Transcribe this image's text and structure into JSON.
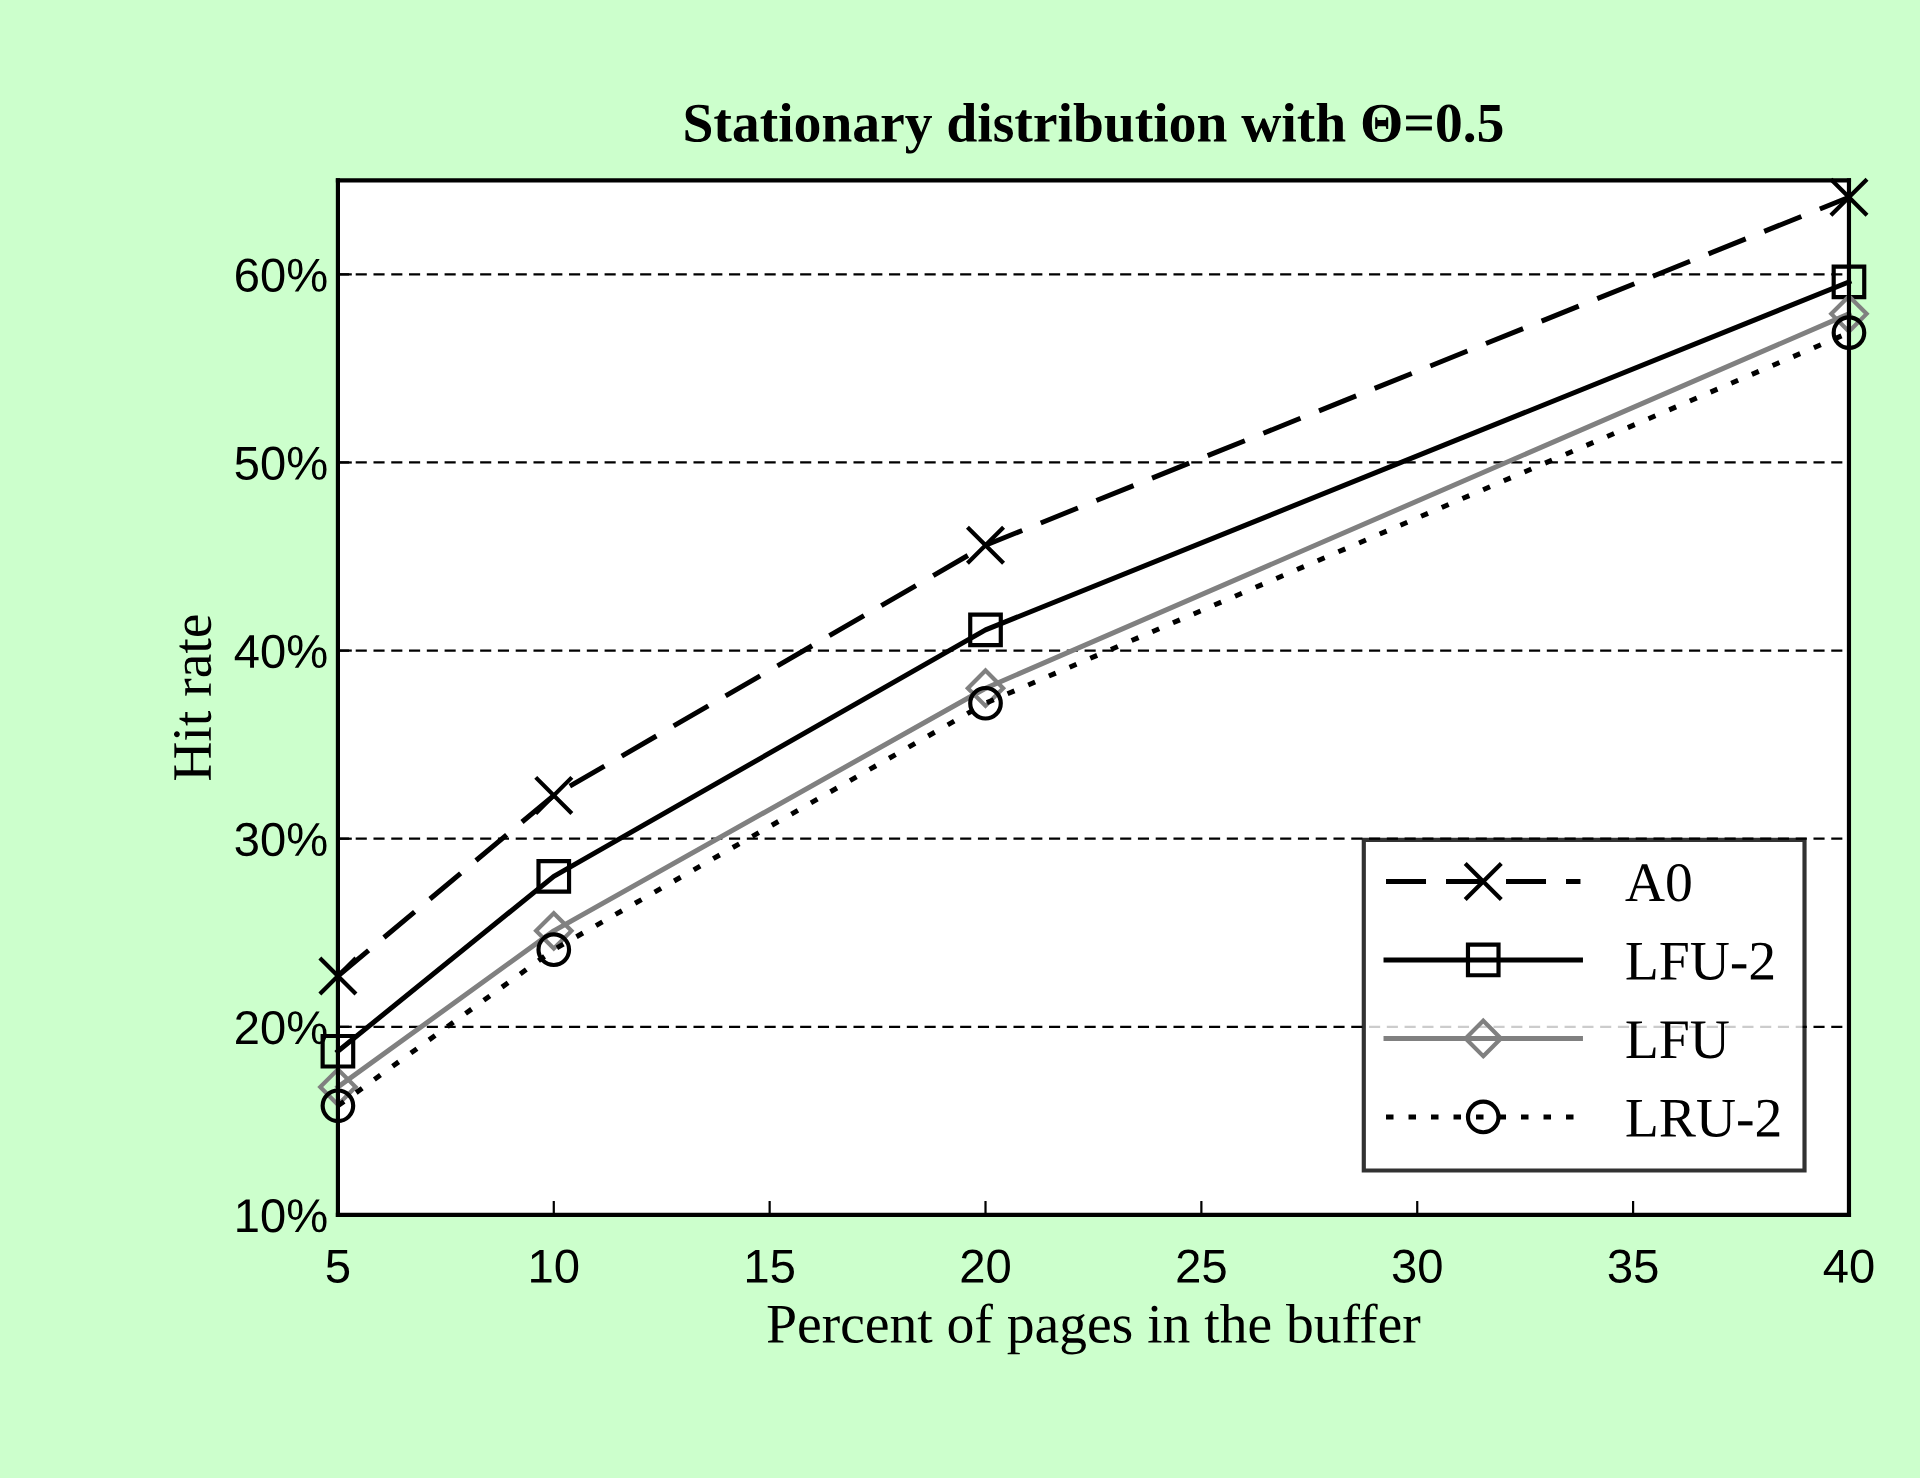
{
  "chart_data": {
    "type": "line",
    "title": "Stationary distribution with Θ=0.5",
    "xlabel": "Percent of pages in the buffer",
    "ylabel": "Hit rate",
    "x": [
      5,
      10,
      20,
      40
    ],
    "series": [
      {
        "name": "A0",
        "color": "#000000",
        "marker": "cross",
        "line_style": "dashed",
        "values": [
          22.7,
          32.3,
          45.6,
          64.1
        ]
      },
      {
        "name": "LFU-2",
        "color": "#000000",
        "marker": "square",
        "line_style": "solid",
        "values": [
          18.7,
          28.0,
          41.1,
          59.6
        ]
      },
      {
        "name": "LFU",
        "color": "#808080",
        "marker": "diamond",
        "line_style": "solid",
        "values": [
          16.8,
          25.1,
          38.0,
          57.9
        ]
      },
      {
        "name": "LRU-2",
        "color": "#000000",
        "marker": "circle",
        "line_style": "dotted",
        "values": [
          15.8,
          24.1,
          37.2,
          56.9
        ]
      }
    ],
    "xlim": [
      5,
      40
    ],
    "xticks": [
      5,
      10,
      15,
      20,
      25,
      30,
      35,
      40
    ],
    "ylim": [
      10,
      65
    ],
    "yticks": [
      {
        "value": 10,
        "label": "10%"
      },
      {
        "value": 20,
        "label": "20%"
      },
      {
        "value": 30,
        "label": "30%"
      },
      {
        "value": 40,
        "label": "40%"
      },
      {
        "value": 50,
        "label": "50%"
      },
      {
        "value": 60,
        "label": "60%"
      }
    ],
    "grid": "y",
    "legend": "bottom right"
  }
}
